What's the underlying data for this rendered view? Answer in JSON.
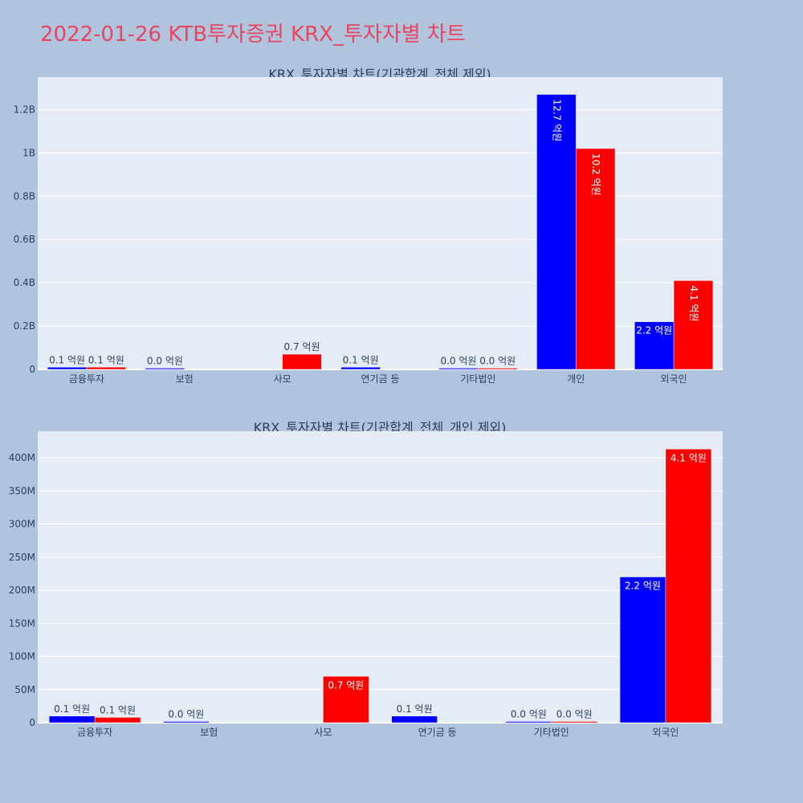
{
  "page_title": "2022-01-26 KTB투자증권 KRX_투자자별 차트",
  "colors": {
    "series_a": "#0000ff",
    "series_b": "#ff0000",
    "title": "#e8455e",
    "plot_bg": "#e5ecf6",
    "page_bg": "#b0c4de"
  },
  "chart_data": [
    {
      "type": "bar",
      "title": "KRX_투자자별 차트(기관합계_전체 제외)",
      "categories": [
        "금융투자",
        "보험",
        "사모",
        "연기금 등",
        "기타법인",
        "개인",
        "외국인"
      ],
      "series": [
        {
          "color": "#0000ff",
          "values": [
            10000000,
            0,
            null,
            10000000,
            0,
            1270000000,
            220000000
          ],
          "labels": [
            "0.1 억원",
            "0.0 억원",
            "",
            "0.1 억원",
            "0.0 억원",
            "12.7 억원",
            "2.2 억원"
          ]
        },
        {
          "color": "#ff0000",
          "values": [
            10000000,
            null,
            70000000,
            null,
            0,
            1020000000,
            410000000
          ],
          "labels": [
            "0.1 억원",
            "",
            "0.7 억원",
            "",
            "0.0 억원",
            "10.2 억원",
            "4.1 억원"
          ]
        }
      ],
      "ylim": [
        0,
        1350000000
      ],
      "yticks": [
        0,
        200000000,
        400000000,
        600000000,
        800000000,
        1000000000,
        1200000000
      ],
      "ytick_labels": [
        "0",
        "0.2B",
        "0.4B",
        "0.6B",
        "0.8B",
        "1B",
        "1.2B"
      ],
      "grid": true
    },
    {
      "type": "bar",
      "title": "KRX_투자자별 차트(기관합계_전체_개인 제외)",
      "categories": [
        "금융투자",
        "보험",
        "사모",
        "연기금 등",
        "기타법인",
        "외국인"
      ],
      "series": [
        {
          "color": "#0000ff",
          "values": [
            10000000,
            0,
            null,
            10000000,
            0,
            220000000
          ],
          "labels": [
            "0.1 억원",
            "0.0 억원",
            "",
            "0.1 억원",
            "0.0 억원",
            "2.2 억원"
          ]
        },
        {
          "color": "#ff0000",
          "values": [
            8000000,
            null,
            70000000,
            null,
            0,
            413000000
          ],
          "labels": [
            "0.1 억원",
            "",
            "0.7 억원",
            "",
            "0.0 억원",
            "4.1 억원"
          ]
        }
      ],
      "ylim": [
        0,
        440000000
      ],
      "yticks": [
        0,
        50000000,
        100000000,
        150000000,
        200000000,
        250000000,
        300000000,
        350000000,
        400000000
      ],
      "ytick_labels": [
        "0",
        "50M",
        "100M",
        "150M",
        "200M",
        "250M",
        "300M",
        "350M",
        "400M"
      ],
      "grid": true
    }
  ]
}
